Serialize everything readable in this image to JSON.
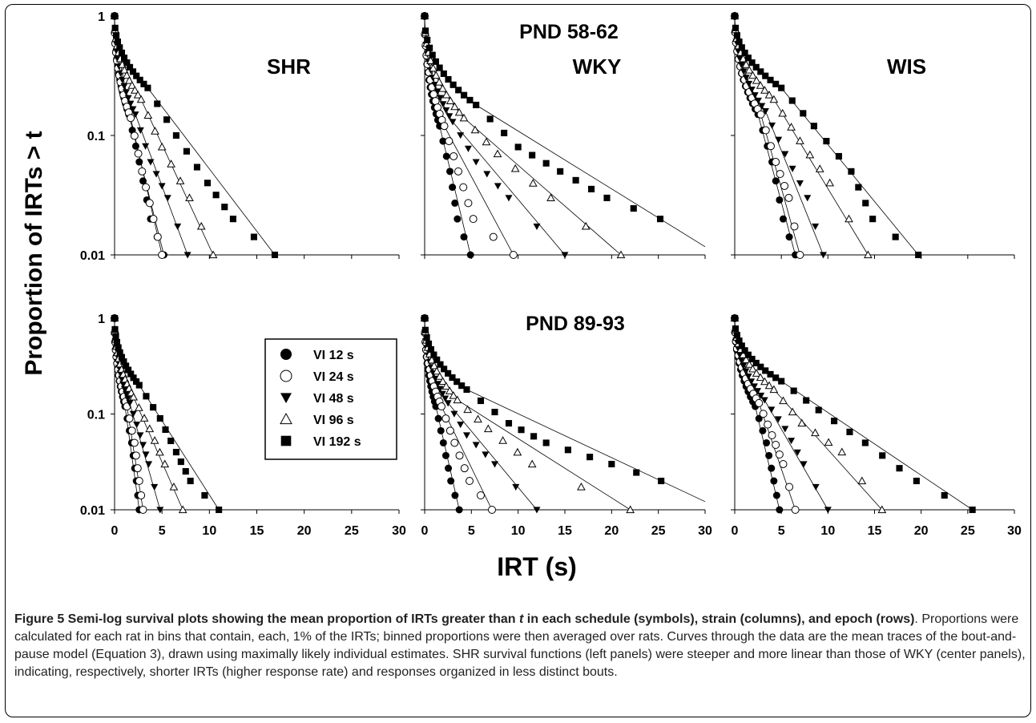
{
  "figure": {
    "y_axis_title": "Proportion of IRTs > t",
    "x_axis_title": "IRT (s)",
    "row_labels": [
      "PND 58-62",
      "PND 89-93"
    ],
    "column_labels": [
      "SHR",
      "WKY",
      "WIS"
    ],
    "y_ticks": [
      "1",
      "0.1",
      "0.01"
    ],
    "x_ticks": [
      "0",
      "5",
      "10",
      "15",
      "20",
      "25",
      "30"
    ],
    "legend": [
      "VI 12 s",
      "VI 24 s",
      "VI 48 s",
      "VI 96 s",
      "VI 192 s"
    ]
  },
  "caption": {
    "bold_prefix": "Figure 5 Semi-log survival plots showing the mean proportion of IRTs greater than ",
    "bold_italic": "t",
    "bold_suffix": " in each schedule (symbols), strain (columns), and epoch (rows)",
    "body": ". Proportions were calculated for each rat in bins that contain, each, 1% of the IRTs; binned proportions were then averaged over rats. Curves through the data are the mean traces of the bout-and-pause model (Equation 3), drawn using maximally likely individual estimates. SHR survival functions (left panels) were steeper and more linear than those of WKY (center panels), indicating, respectively, shorter IRTs (higher response rate) and responses organized in less distinct bouts."
  },
  "chart_data": [
    {
      "type": "scatter",
      "epoch": "PND 58-62",
      "strain": "SHR",
      "xlim": [
        0,
        30
      ],
      "ylim": [
        0.01,
        1
      ],
      "yscale": "log",
      "series": [
        {
          "name": "VI 12 s",
          "tail": [
            [
              1.5,
              0.15
            ],
            [
              2.6,
              0.06
            ],
            [
              3.8,
              0.02
            ],
            [
              5.2,
              0.01
            ]
          ]
        },
        {
          "name": "VI 24 s",
          "tail": [
            [
              1.7,
              0.14
            ],
            [
              2.9,
              0.05
            ],
            [
              4.1,
              0.02
            ],
            [
              5.0,
              0.01
            ]
          ]
        },
        {
          "name": "VI 48 s",
          "tail": [
            [
              2.2,
              0.15
            ],
            [
              3.8,
              0.06
            ],
            [
              5.6,
              0.03
            ],
            [
              7.7,
              0.01
            ]
          ]
        },
        {
          "name": "VI 96 s",
          "tail": [
            [
              2.8,
              0.2
            ],
            [
              5.0,
              0.08
            ],
            [
              7.9,
              0.03
            ],
            [
              10.4,
              0.01
            ]
          ]
        },
        {
          "name": "VI 192 s",
          "tail": [
            [
              3.5,
              0.25
            ],
            [
              6.5,
              0.1
            ],
            [
              9.8,
              0.04
            ],
            [
              12.5,
              0.02
            ],
            [
              16.9,
              0.01
            ]
          ]
        }
      ]
    },
    {
      "type": "scatter",
      "epoch": "PND 58-62",
      "strain": "WKY",
      "xlim": [
        0,
        30
      ],
      "ylim": [
        0.01,
        1
      ],
      "yscale": "log",
      "series": [
        {
          "name": "VI 12 s",
          "tail": [
            [
              1.6,
              0.12
            ],
            [
              2.7,
              0.05
            ],
            [
              3.5,
              0.02
            ],
            [
              4.9,
              0.01
            ]
          ]
        },
        {
          "name": "VI 24 s",
          "tail": [
            [
              2.1,
              0.12
            ],
            [
              3.6,
              0.05
            ],
            [
              5.2,
              0.02
            ],
            [
              9.5,
              0.01
            ]
          ]
        },
        {
          "name": "VI 48 s",
          "tail": [
            [
              3.0,
              0.13
            ],
            [
              5.5,
              0.06
            ],
            [
              9.0,
              0.03
            ],
            [
              15.0,
              0.01
            ]
          ]
        },
        {
          "name": "VI 96 s",
          "tail": [
            [
              4.2,
              0.14
            ],
            [
              7.8,
              0.07
            ],
            [
              13.5,
              0.03
            ],
            [
              21.0,
              0.01
            ]
          ]
        },
        {
          "name": "VI 192 s",
          "tail": [
            [
              5.5,
              0.18
            ],
            [
              10.0,
              0.08
            ],
            [
              14.5,
              0.05
            ],
            [
              19.5,
              0.03
            ],
            [
              25.2,
              0.02
            ]
          ]
        }
      ]
    },
    {
      "type": "scatter",
      "epoch": "PND 58-62",
      "strain": "WIS",
      "xlim": [
        0,
        30
      ],
      "ylim": [
        0.01,
        1
      ],
      "yscale": "log",
      "series": [
        {
          "name": "VI 12 s",
          "tail": [
            [
              2.5,
              0.15
            ],
            [
              4.0,
              0.06
            ],
            [
              5.2,
              0.02
            ],
            [
              6.5,
              0.01
            ]
          ]
        },
        {
          "name": "VI 24 s",
          "tail": [
            [
              2.8,
              0.15
            ],
            [
              4.4,
              0.06
            ],
            [
              5.8,
              0.03
            ],
            [
              7.0,
              0.01
            ]
          ]
        },
        {
          "name": "VI 48 s",
          "tail": [
            [
              3.3,
              0.16
            ],
            [
              5.4,
              0.07
            ],
            [
              7.8,
              0.03
            ],
            [
              9.5,
              0.01
            ]
          ]
        },
        {
          "name": "VI 96 s",
          "tail": [
            [
              4.2,
              0.2
            ],
            [
              7.0,
              0.09
            ],
            [
              10.2,
              0.04
            ],
            [
              14.3,
              0.01
            ]
          ]
        },
        {
          "name": "VI 192 s",
          "tail": [
            [
              5.0,
              0.25
            ],
            [
              8.5,
              0.12
            ],
            [
              12.5,
              0.05
            ],
            [
              14.8,
              0.02
            ],
            [
              19.7,
              0.01
            ]
          ]
        }
      ]
    },
    {
      "type": "scatter",
      "epoch": "PND 89-93",
      "strain": "SHR",
      "xlim": [
        0,
        30
      ],
      "ylim": [
        0.01,
        1
      ],
      "yscale": "log",
      "series": [
        {
          "name": "VI 12 s",
          "tail": [
            [
              1.1,
              0.12
            ],
            [
              1.8,
              0.05
            ],
            [
              2.3,
              0.02
            ],
            [
              2.6,
              0.01
            ]
          ]
        },
        {
          "name": "VI 24 s",
          "tail": [
            [
              1.3,
              0.12
            ],
            [
              2.1,
              0.05
            ],
            [
              2.6,
              0.02
            ],
            [
              3.0,
              0.01
            ]
          ]
        },
        {
          "name": "VI 48 s",
          "tail": [
            [
              1.6,
              0.13
            ],
            [
              2.7,
              0.06
            ],
            [
              3.6,
              0.03
            ],
            [
              4.8,
              0.01
            ]
          ]
        },
        {
          "name": "VI 96 s",
          "tail": [
            [
              2.0,
              0.15
            ],
            [
              3.7,
              0.07
            ],
            [
              5.3,
              0.03
            ],
            [
              7.2,
              0.01
            ]
          ]
        },
        {
          "name": "VI 192 s",
          "tail": [
            [
              2.6,
              0.2
            ],
            [
              4.8,
              0.09
            ],
            [
              6.5,
              0.04
            ],
            [
              8.0,
              0.02
            ],
            [
              11.0,
              0.01
            ]
          ]
        }
      ]
    },
    {
      "type": "scatter",
      "epoch": "PND 89-93",
      "strain": "WKY",
      "xlim": [
        0,
        30
      ],
      "ylim": [
        0.01,
        1
      ],
      "yscale": "log",
      "series": [
        {
          "name": "VI 12 s",
          "tail": [
            [
              1.2,
              0.12
            ],
            [
              2.0,
              0.05
            ],
            [
              2.8,
              0.02
            ],
            [
              3.7,
              0.01
            ]
          ]
        },
        {
          "name": "VI 24 s",
          "tail": [
            [
              1.8,
              0.12
            ],
            [
              3.2,
              0.05
            ],
            [
              4.8,
              0.02
            ],
            [
              7.2,
              0.01
            ]
          ]
        },
        {
          "name": "VI 48 s",
          "tail": [
            [
              2.5,
              0.13
            ],
            [
              4.5,
              0.06
            ],
            [
              7.5,
              0.03
            ],
            [
              12.0,
              0.01
            ]
          ]
        },
        {
          "name": "VI 96 s",
          "tail": [
            [
              3.5,
              0.14
            ],
            [
              6.8,
              0.07
            ],
            [
              11.5,
              0.03
            ],
            [
              22.0,
              0.01
            ]
          ]
        },
        {
          "name": "VI 192 s",
          "tail": [
            [
              4.5,
              0.18
            ],
            [
              9.0,
              0.08
            ],
            [
              13.0,
              0.05
            ],
            [
              20.0,
              0.03
            ],
            [
              25.3,
              0.02
            ]
          ]
        }
      ]
    },
    {
      "type": "scatter",
      "epoch": "PND 89-93",
      "strain": "WIS",
      "xlim": [
        0,
        30
      ],
      "ylim": [
        0.01,
        1
      ],
      "yscale": "log",
      "series": [
        {
          "name": "VI 12 s",
          "tail": [
            [
              2.2,
              0.12
            ],
            [
              3.4,
              0.05
            ],
            [
              4.2,
              0.02
            ],
            [
              4.8,
              0.01
            ]
          ]
        },
        {
          "name": "VI 24 s",
          "tail": [
            [
              2.6,
              0.13
            ],
            [
              4.0,
              0.06
            ],
            [
              5.2,
              0.03
            ],
            [
              6.5,
              0.01
            ]
          ]
        },
        {
          "name": "VI 48 s",
          "tail": [
            [
              3.2,
              0.14
            ],
            [
              5.4,
              0.07
            ],
            [
              7.4,
              0.03
            ],
            [
              10.0,
              0.01
            ]
          ]
        },
        {
          "name": "VI 96 s",
          "tail": [
            [
              4.2,
              0.18
            ],
            [
              7.2,
              0.08
            ],
            [
              11.5,
              0.04
            ],
            [
              15.8,
              0.01
            ]
          ]
        },
        {
          "name": "VI 192 s",
          "tail": [
            [
              5.0,
              0.22
            ],
            [
              9.0,
              0.11
            ],
            [
              14.0,
              0.05
            ],
            [
              19.5,
              0.02
            ],
            [
              25.5,
              0.01
            ]
          ]
        }
      ]
    }
  ]
}
